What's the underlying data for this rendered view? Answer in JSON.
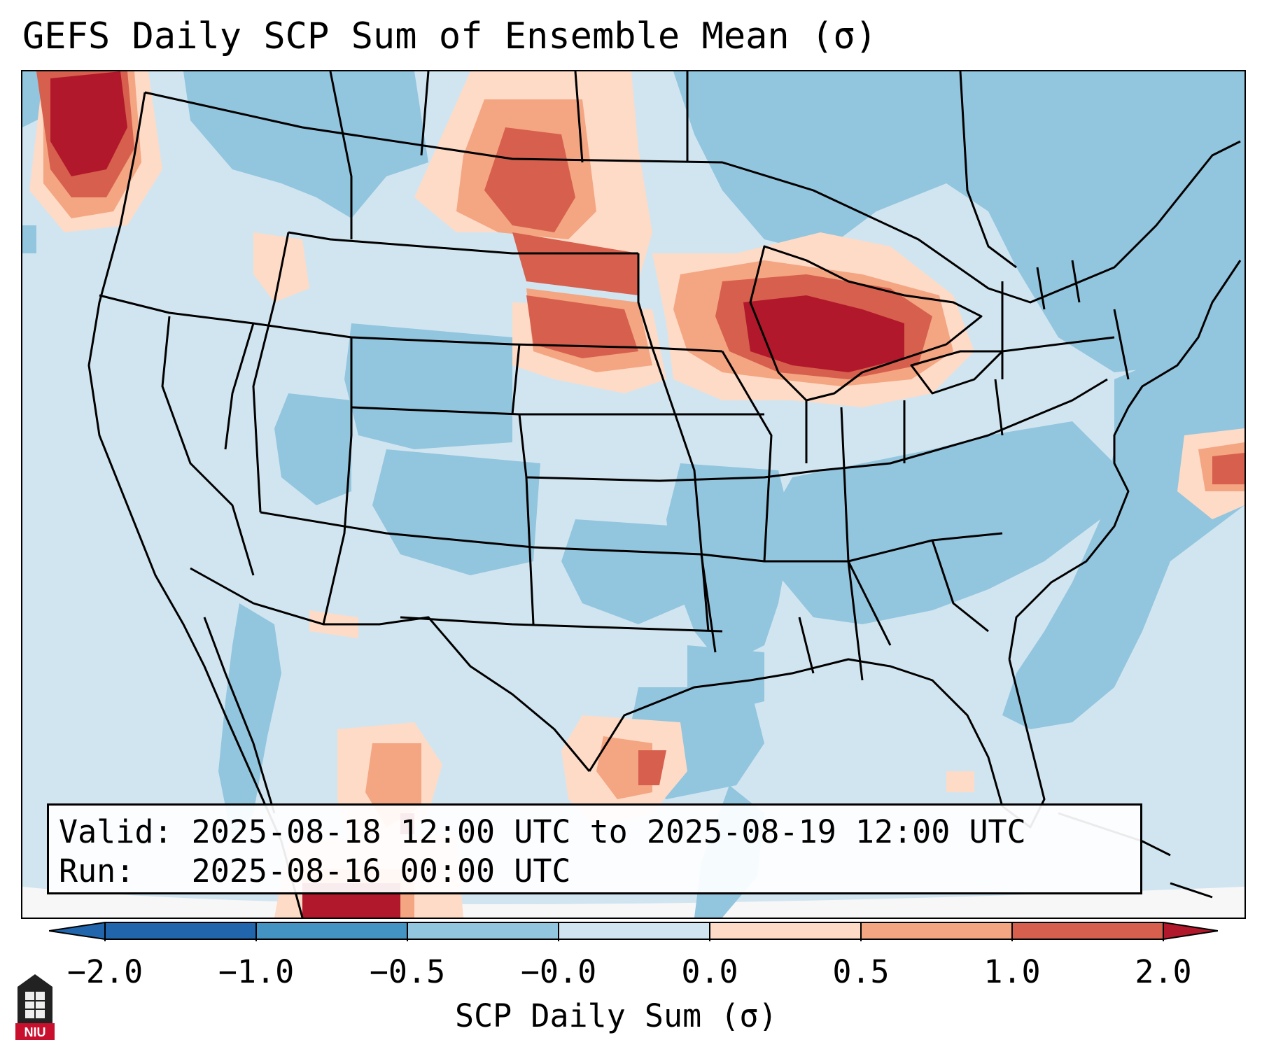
{
  "title": "GEFS Daily SCP Sum of Ensemble Mean (σ)",
  "info": {
    "valid_label": "Valid:",
    "valid_value": "2025-08-18 12:00 UTC to 2025-08-19 12:00 UTC",
    "run_label": "Run:",
    "run_value": "2025-08-16 00:00 UTC"
  },
  "colorbar": {
    "label": "SCP Daily Sum (σ)",
    "ticks": [
      "−2.0",
      "−1.0",
      "−0.5",
      "−0.0",
      "0.0",
      "0.5",
      "1.0",
      "2.0"
    ],
    "colors": [
      "#2166ac",
      "#4393c3",
      "#92c5de",
      "#d1e5f0",
      "#fddbc7",
      "#f4a582",
      "#d6604d",
      "#b2182b"
    ]
  },
  "logo_text": "NIU"
}
